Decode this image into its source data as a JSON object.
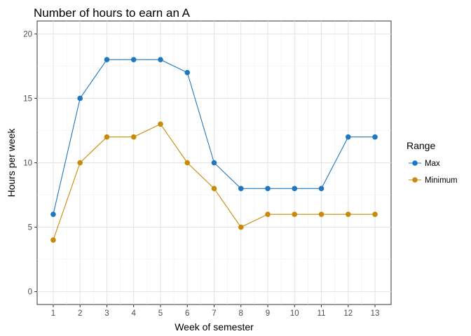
{
  "chart_data": {
    "type": "line",
    "title": "Number of hours to earn an A",
    "xlabel": "Week of semester",
    "ylabel": "Hours per week",
    "x": [
      1,
      2,
      3,
      4,
      5,
      6,
      7,
      8,
      9,
      10,
      11,
      12,
      13
    ],
    "xticks": [
      "1",
      "2",
      "3",
      "4",
      "5",
      "6",
      "7",
      "8",
      "9",
      "10",
      "11",
      "12",
      "13"
    ],
    "yticks": [
      "0",
      "5",
      "10",
      "15",
      "20"
    ],
    "ylim": [
      0,
      20
    ],
    "grid": true,
    "legend": {
      "title": "Range",
      "placement": "right"
    },
    "series": [
      {
        "name": "Max",
        "color": "#1f77c0",
        "values": [
          6,
          15,
          18,
          18,
          18,
          17,
          10,
          8,
          8,
          8,
          8,
          12,
          12
        ]
      },
      {
        "name": "Minimum",
        "color": "#c98a0a",
        "values": [
          4,
          10,
          12,
          12,
          13,
          10,
          8,
          5,
          6,
          6,
          6,
          6,
          6
        ]
      }
    ]
  }
}
